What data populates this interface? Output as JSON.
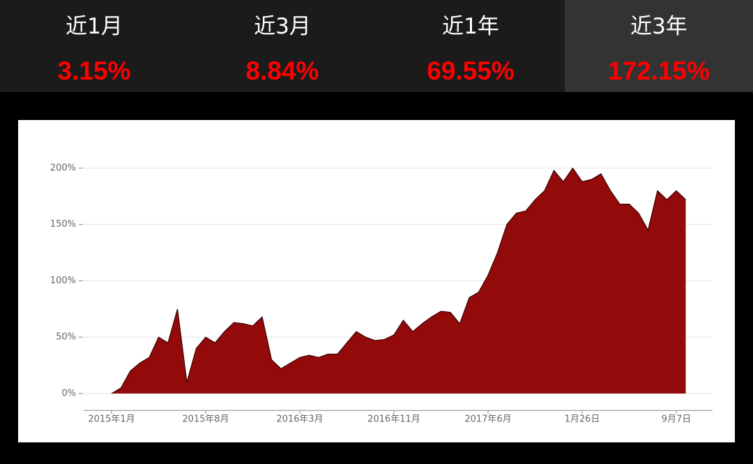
{
  "tabs": [
    {
      "label": "近1月",
      "value": "3.15%"
    },
    {
      "label": "近3月",
      "value": "8.84%"
    },
    {
      "label": "近1年",
      "value": "69.55%"
    },
    {
      "label": "近3年",
      "value": "172.15%",
      "selected": true
    }
  ],
  "chart_data": {
    "type": "area",
    "color": "#930a0a",
    "line_color": "#3a0000",
    "categories": [
      "2015年1月",
      null,
      null,
      null,
      null,
      null,
      null,
      null,
      null,
      null,
      "2015年8月",
      null,
      null,
      null,
      null,
      null,
      null,
      null,
      null,
      null,
      "2016年3月",
      null,
      null,
      null,
      null,
      null,
      null,
      null,
      null,
      null,
      "2016年11月",
      null,
      null,
      null,
      null,
      null,
      null,
      null,
      null,
      null,
      "2017年6月",
      null,
      null,
      null,
      null,
      null,
      null,
      null,
      null,
      null,
      "1月26日",
      null,
      null,
      null,
      null,
      null,
      null,
      null,
      null,
      null,
      "9月7日",
      null
    ],
    "values": [
      0,
      5,
      20,
      27,
      32,
      50,
      45,
      75,
      10,
      40,
      50,
      45,
      55,
      63,
      62,
      60,
      68,
      30,
      22,
      27,
      32,
      34,
      32,
      35,
      35,
      45,
      55,
      50,
      47,
      48,
      52,
      65,
      55,
      62,
      68,
      73,
      72,
      62,
      85,
      90,
      105,
      125,
      150,
      160,
      162,
      172,
      180,
      198,
      188,
      200,
      188,
      190,
      195,
      180,
      168,
      168,
      160,
      145,
      180,
      172,
      180,
      172
    ],
    "ylim": [
      -15,
      225
    ],
    "yticks": [
      {
        "value": 0,
        "label": "0%"
      },
      {
        "value": 50,
        "label": "50%"
      },
      {
        "value": 100,
        "label": "100%"
      },
      {
        "value": 150,
        "label": "150%"
      },
      {
        "value": 200,
        "label": "200%"
      }
    ],
    "grid": true
  }
}
